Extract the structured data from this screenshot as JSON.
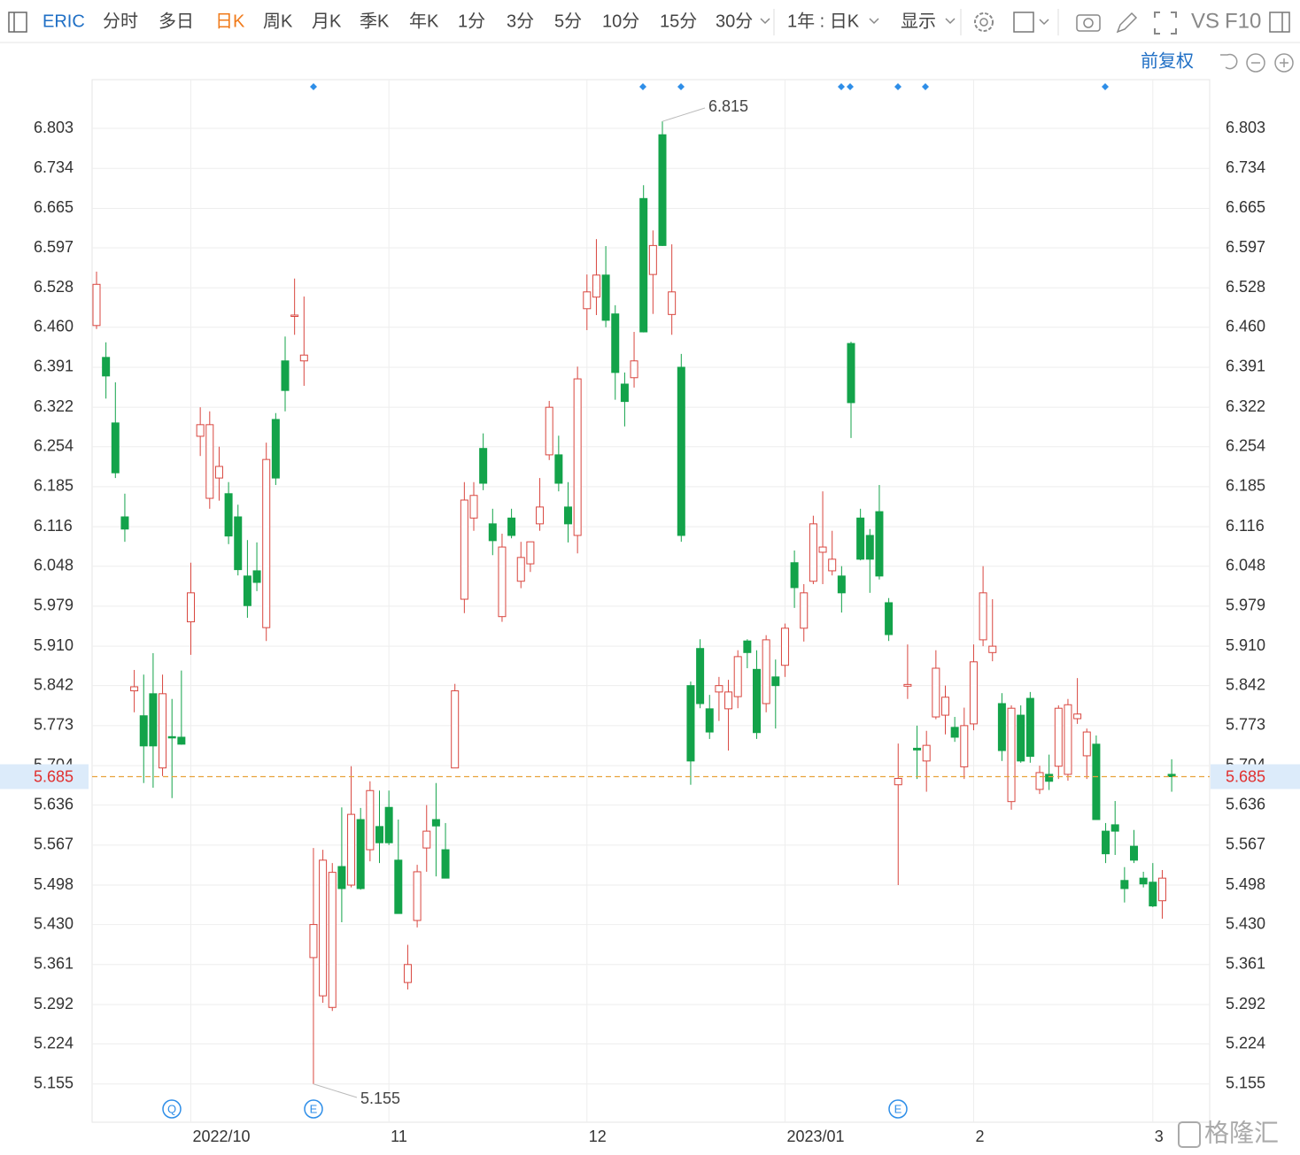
{
  "toolbar": {
    "symbol": "ERIC",
    "periods": [
      "分时",
      "多日",
      "日K",
      "周K",
      "月K",
      "季K",
      "年K",
      "1分",
      "3分",
      "5分",
      "10分",
      "15分",
      "30分"
    ],
    "range": "1年 : 日K",
    "display": "显示",
    "vs": "VS",
    "f10": "F10",
    "adjust": "前复权"
  },
  "chart_data": {
    "type": "candlestick",
    "categories": [
      null,
      null,
      null,
      null,
      null,
      null,
      null,
      null,
      null,
      null,
      "2022/10",
      null,
      null,
      null,
      null,
      null,
      null,
      null,
      null,
      null,
      null,
      null,
      null,
      null,
      null,
      null,
      null,
      null,
      null,
      null,
      null,
      "11",
      null,
      null,
      null,
      null,
      null,
      null,
      null,
      null,
      null,
      null,
      null,
      null,
      null,
      null,
      null,
      null,
      null,
      null,
      null,
      null,
      "12",
      null,
      null,
      null,
      null,
      null,
      null,
      null,
      null,
      null,
      null,
      null,
      null,
      null,
      null,
      null,
      null,
      null,
      null,
      null,
      null,
      "2023/01",
      null,
      null,
      null,
      null,
      null,
      null,
      null,
      null,
      null,
      null,
      null,
      null,
      null,
      null,
      null,
      null,
      null,
      null,
      null,
      "2",
      null,
      null,
      null,
      null,
      null,
      null,
      null,
      null,
      null,
      null,
      null,
      null,
      null,
      null,
      null,
      null,
      null,
      null,
      "3",
      null,
      null
    ],
    "open": [
      6.463,
      6.408,
      6.295,
      6.133,
      5.833,
      5.79,
      5.828,
      5.7,
      5.754,
      5.753,
      5.952,
      6.272,
      6.165,
      6.2,
      6.173,
      6.133,
      6.031,
      6.04,
      5.942,
      6.301,
      6.402,
      6.479,
      6.402,
      5.373,
      5.307,
      5.287,
      5.53,
      5.498,
      5.611,
      5.559,
      5.599,
      5.632,
      5.541,
      5.33,
      5.437,
      5.562,
      5.611,
      5.559,
      5.7,
      5.991,
      6.131,
      6.251,
      6.121,
      5.961,
      6.131,
      6.022,
      6.052,
      6.121,
      6.24,
      6.24,
      6.15,
      6.101,
      6.492,
      6.512,
      6.55,
      6.483,
      6.362,
      6.373,
      6.682,
      6.551,
      6.792,
      6.482,
      6.391,
      5.842,
      5.906,
      5.802,
      5.831,
      5.802,
      5.823,
      5.919,
      5.87,
      5.811,
      5.857,
      5.877,
      6.054,
      5.941,
      6.022,
      6.072,
      6.04,
      6.031,
      6.432,
      6.131,
      6.101,
      6.142,
      5.985,
      5.671,
      5.841,
      5.734,
      5.712,
      5.788,
      5.791,
      5.77,
      5.702,
      5.776,
      5.921,
      5.899,
      5.811,
      5.642,
      5.791,
      5.82,
      5.663,
      5.689,
      5.703,
      5.689,
      5.785,
      5.721,
      5.741,
      5.591,
      5.602,
      5.506,
      5.565,
      5.51,
      5.503,
      5.471,
      5.689
    ],
    "high": [
      6.556,
      6.434,
      6.365,
      6.173,
      5.869,
      5.861,
      5.898,
      5.861,
      5.819,
      5.868,
      6.054,
      6.322,
      6.315,
      6.254,
      6.193,
      6.154,
      6.093,
      6.089,
      6.261,
      6.312,
      6.444,
      6.544,
      6.513,
      5.562,
      5.559,
      5.536,
      5.632,
      5.703,
      5.631,
      5.677,
      5.661,
      5.661,
      5.611,
      5.395,
      5.533,
      5.636,
      5.674,
      5.605,
      5.845,
      6.193,
      6.193,
      6.277,
      6.147,
      6.104,
      6.147,
      6.09,
      6.09,
      6.2,
      6.333,
      6.273,
      6.193,
      6.392,
      6.551,
      6.612,
      6.6,
      6.498,
      6.382,
      6.452,
      6.705,
      6.627,
      6.815,
      6.603,
      6.414,
      5.849,
      5.922,
      5.826,
      5.857,
      5.852,
      5.903,
      5.922,
      5.903,
      5.929,
      5.887,
      5.949,
      6.075,
      6.017,
      6.135,
      6.177,
      6.109,
      6.048,
      6.435,
      6.147,
      6.112,
      6.188,
      5.993,
      5.742,
      5.913,
      5.773,
      5.764,
      5.903,
      5.842,
      5.788,
      5.804,
      5.913,
      6.048,
      5.991,
      5.829,
      5.808,
      5.808,
      5.831,
      5.704,
      5.723,
      5.808,
      5.819,
      5.855,
      5.768,
      5.756,
      5.605,
      5.643,
      5.529,
      5.593,
      5.521,
      5.536,
      5.524,
      5.715
    ],
    "low": [
      6.457,
      6.337,
      6.2,
      6.09,
      5.796,
      5.674,
      5.666,
      5.686,
      5.648,
      5.74,
      5.895,
      6.238,
      6.147,
      6.161,
      6.086,
      6.032,
      5.959,
      6.005,
      5.919,
      6.188,
      6.315,
      6.447,
      6.359,
      5.155,
      5.295,
      5.281,
      5.434,
      5.494,
      5.49,
      5.539,
      5.536,
      5.567,
      5.449,
      5.318,
      5.425,
      5.521,
      5.513,
      5.51,
      5.7,
      5.967,
      6.109,
      6.179,
      6.067,
      5.952,
      6.096,
      6.01,
      6.038,
      6.109,
      6.231,
      6.177,
      6.089,
      6.07,
      6.455,
      6.481,
      6.46,
      6.335,
      6.289,
      6.356,
      6.451,
      6.483,
      6.6,
      6.447,
      6.09,
      5.671,
      5.803,
      5.75,
      5.781,
      5.73,
      5.803,
      5.872,
      5.75,
      5.796,
      5.768,
      5.857,
      5.976,
      5.918,
      6.017,
      6.017,
      6.032,
      5.968,
      6.269,
      6.058,
      6.002,
      6.025,
      5.919,
      5.498,
      5.819,
      5.681,
      5.659,
      5.784,
      5.758,
      5.745,
      5.681,
      5.765,
      5.91,
      5.884,
      5.712,
      5.628,
      5.709,
      5.709,
      5.655,
      5.662,
      5.681,
      5.678,
      5.776,
      5.681,
      5.611,
      5.536,
      5.55,
      5.468,
      5.536,
      5.494,
      5.46,
      5.44,
      5.659
    ],
    "close": [
      6.534,
      6.376,
      6.209,
      6.112,
      5.84,
      5.738,
      5.738,
      5.828,
      5.752,
      5.741,
      6.002,
      6.292,
      6.292,
      6.22,
      6.1,
      6.042,
      5.98,
      6.02,
      6.232,
      6.2,
      6.351,
      6.481,
      6.412,
      5.43,
      5.541,
      5.52,
      5.492,
      5.62,
      5.492,
      5.661,
      5.571,
      5.571,
      5.449,
      5.361,
      5.521,
      5.591,
      5.6,
      5.51,
      5.833,
      6.162,
      6.17,
      6.191,
      6.092,
      6.081,
      6.101,
      6.063,
      6.09,
      6.15,
      6.322,
      6.191,
      6.121,
      6.371,
      6.521,
      6.55,
      6.472,
      6.382,
      6.332,
      6.402,
      6.452,
      6.601,
      6.601,
      6.521,
      6.101,
      5.712,
      5.811,
      5.762,
      5.842,
      5.831,
      5.892,
      5.899,
      5.761,
      5.921,
      5.842,
      5.941,
      6.011,
      6.002,
      6.121,
      6.081,
      6.06,
      6.002,
      6.33,
      6.06,
      6.06,
      6.031,
      5.93,
      5.682,
      5.844,
      5.731,
      5.739,
      5.872,
      5.822,
      5.753,
      5.773,
      5.883,
      6.002,
      5.91,
      5.73,
      5.803,
      5.712,
      5.72,
      5.692,
      5.677,
      5.803,
      5.809,
      5.793,
      5.762,
      5.611,
      5.552,
      5.591,
      5.492,
      5.541,
      5.5,
      5.462,
      5.51,
      5.685
    ],
    "up_color": "#d9463f",
    "down_color": "#13a34a",
    "last_price_color": "#e8a23c",
    "ylim": [
      5.089,
      6.887
    ],
    "yticks": [
      5.155,
      5.224,
      5.292,
      5.361,
      {
        "value": 5.43,
        "label": "5.430"
      },
      5.498,
      5.567,
      5.636,
      5.704,
      5.773,
      5.842,
      {
        "value": 5.91,
        "label": "5.910"
      },
      5.979,
      6.048,
      6.116,
      6.185,
      6.254,
      6.322,
      6.391,
      {
        "value": 6.46,
        "label": "6.460"
      },
      6.528,
      6.597,
      6.665,
      6.734,
      6.803
    ],
    "grid": true,
    "last_price": 5.685,
    "max_label": 6.815,
    "min_label": 5.155,
    "events": [
      "Q",
      "E",
      "E"
    ]
  },
  "watermark": "格隆汇"
}
